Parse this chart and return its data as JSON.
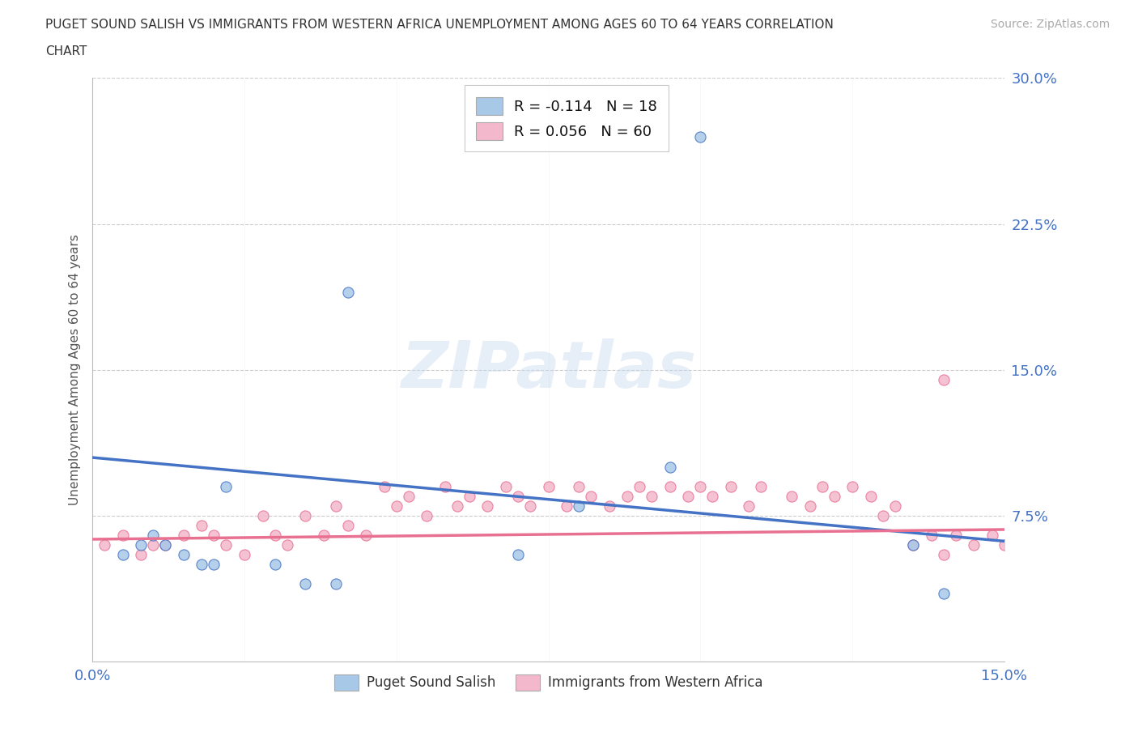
{
  "title_line1": "PUGET SOUND SALISH VS IMMIGRANTS FROM WESTERN AFRICA UNEMPLOYMENT AMONG AGES 60 TO 64 YEARS CORRELATION",
  "title_line2": "CHART",
  "source_text": "Source: ZipAtlas.com",
  "ylabel": "Unemployment Among Ages 60 to 64 years",
  "xlim": [
    0.0,
    0.15
  ],
  "ylim": [
    0.0,
    0.3
  ],
  "xticks": [
    0.0,
    0.025,
    0.05,
    0.075,
    0.1,
    0.125,
    0.15
  ],
  "xtick_labels": [
    "0.0%",
    "",
    "",
    "",
    "",
    "",
    "15.0%"
  ],
  "yticks": [
    0.0,
    0.075,
    0.15,
    0.225,
    0.3
  ],
  "ytick_labels": [
    "",
    "7.5%",
    "15.0%",
    "22.5%",
    "30.0%"
  ],
  "legend1_label": "R = -0.114   N = 18",
  "legend2_label": "R = 0.056   N = 60",
  "legend_bottom_label1": "Puget Sound Salish",
  "legend_bottom_label2": "Immigrants from Western Africa",
  "blue_color": "#a8c8e8",
  "pink_color": "#f4b8cc",
  "blue_line_color": "#4472c4",
  "pink_line_color": "#e87090",
  "watermark": "ZIPatlas",
  "blue_scatter_x": [
    0.005,
    0.008,
    0.01,
    0.012,
    0.015,
    0.018,
    0.02,
    0.022,
    0.03,
    0.035,
    0.04,
    0.042,
    0.07,
    0.08,
    0.095,
    0.1,
    0.135,
    0.14
  ],
  "blue_scatter_y": [
    0.055,
    0.06,
    0.065,
    0.06,
    0.055,
    0.05,
    0.05,
    0.09,
    0.05,
    0.04,
    0.04,
    0.19,
    0.055,
    0.08,
    0.1,
    0.27,
    0.06,
    0.035
  ],
  "pink_scatter_x": [
    0.002,
    0.005,
    0.008,
    0.01,
    0.012,
    0.015,
    0.018,
    0.02,
    0.022,
    0.025,
    0.028,
    0.03,
    0.032,
    0.035,
    0.038,
    0.04,
    0.042,
    0.045,
    0.048,
    0.05,
    0.052,
    0.055,
    0.058,
    0.06,
    0.062,
    0.065,
    0.068,
    0.07,
    0.072,
    0.075,
    0.078,
    0.08,
    0.082,
    0.085,
    0.088,
    0.09,
    0.092,
    0.095,
    0.098,
    0.1,
    0.102,
    0.105,
    0.108,
    0.11,
    0.115,
    0.118,
    0.12,
    0.122,
    0.125,
    0.128,
    0.13,
    0.132,
    0.135,
    0.138,
    0.14,
    0.142,
    0.145,
    0.148,
    0.15,
    0.14
  ],
  "pink_scatter_y": [
    0.06,
    0.065,
    0.055,
    0.06,
    0.06,
    0.065,
    0.07,
    0.065,
    0.06,
    0.055,
    0.075,
    0.065,
    0.06,
    0.075,
    0.065,
    0.08,
    0.07,
    0.065,
    0.09,
    0.08,
    0.085,
    0.075,
    0.09,
    0.08,
    0.085,
    0.08,
    0.09,
    0.085,
    0.08,
    0.09,
    0.08,
    0.09,
    0.085,
    0.08,
    0.085,
    0.09,
    0.085,
    0.09,
    0.085,
    0.09,
    0.085,
    0.09,
    0.08,
    0.09,
    0.085,
    0.08,
    0.09,
    0.085,
    0.09,
    0.085,
    0.075,
    0.08,
    0.06,
    0.065,
    0.055,
    0.065,
    0.06,
    0.065,
    0.06,
    0.145
  ],
  "blue_trend_x": [
    0.0,
    0.15
  ],
  "blue_trend_y": [
    0.105,
    0.062
  ],
  "pink_trend_x": [
    0.0,
    0.15
  ],
  "pink_trend_y": [
    0.063,
    0.068
  ]
}
